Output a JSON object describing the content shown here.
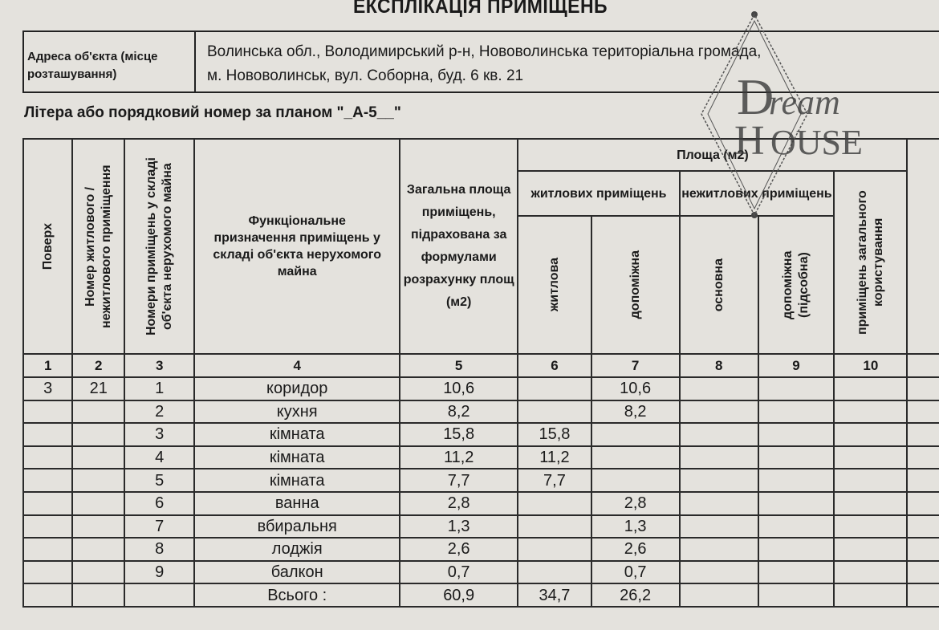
{
  "document": {
    "title": "ЕКСПЛІКАЦІЯ ПРИМІЩЕНЬ",
    "address_label": "Адреса об'єкта (місце розташування)",
    "address_line1": "Волинська обл., Володимирський р-н, Нововолинська територіальна громада,",
    "address_line2": "м. Нововолинськ, вул. Соборна, буд. 6 кв. 21",
    "litera": "Літера або порядковий номер за планом \"_А-5__\""
  },
  "watermark": {
    "line1": "Dream",
    "line2": "HOUSE"
  },
  "table": {
    "headers": {
      "floor": "Поверх",
      "unit_number": "Номер житлового / нежитлового приміщення",
      "room_numbers": "Номери приміщень у складі об'єкта нерухомого майна",
      "purpose": "Функціональне призначення приміщень у складі об'єкта нерухомого майна",
      "total_area": "Загальна площа приміщень, підрахована за формулами розрахунку площ (м2)",
      "area": "Площа (м2)",
      "residential": "житлових приміщень",
      "non_residential": "нежитлових приміщень",
      "living": "житлова",
      "auxiliary": "допоміжна",
      "main": "основна",
      "auxiliary_sub": "допоміжна (підсобна)",
      "common": "приміщень загального користування"
    },
    "column_numbers": [
      "1",
      "2",
      "3",
      "4",
      "5",
      "6",
      "7",
      "8",
      "9",
      "10"
    ],
    "rows": [
      {
        "floor": "3",
        "unit": "21",
        "num": "1",
        "name": "коридор",
        "total": "10,6",
        "living": "",
        "aux": "10,6"
      },
      {
        "floor": "",
        "unit": "",
        "num": "2",
        "name": "кухня",
        "total": "8,2",
        "living": "",
        "aux": "8,2"
      },
      {
        "floor": "",
        "unit": "",
        "num": "3",
        "name": "кімната",
        "total": "15,8",
        "living": "15,8",
        "aux": ""
      },
      {
        "floor": "",
        "unit": "",
        "num": "4",
        "name": "кімната",
        "total": "11,2",
        "living": "11,2",
        "aux": ""
      },
      {
        "floor": "",
        "unit": "",
        "num": "5",
        "name": "кімната",
        "total": "7,7",
        "living": "7,7",
        "aux": ""
      },
      {
        "floor": "",
        "unit": "",
        "num": "6",
        "name": "ванна",
        "total": "2,8",
        "living": "",
        "aux": "2,8"
      },
      {
        "floor": "",
        "unit": "",
        "num": "7",
        "name": "вбиральня",
        "total": "1,3",
        "living": "",
        "aux": "1,3"
      },
      {
        "floor": "",
        "unit": "",
        "num": "8",
        "name": "лоджія",
        "total": "2,6",
        "living": "",
        "aux": "2,6"
      },
      {
        "floor": "",
        "unit": "",
        "num": "9",
        "name": "балкон",
        "total": "0,7",
        "living": "",
        "aux": "0,7"
      },
      {
        "floor": "",
        "unit": "",
        "num": "",
        "name": "Всього :",
        "total": "60,9",
        "living": "34,7",
        "aux": "26,2"
      }
    ]
  }
}
